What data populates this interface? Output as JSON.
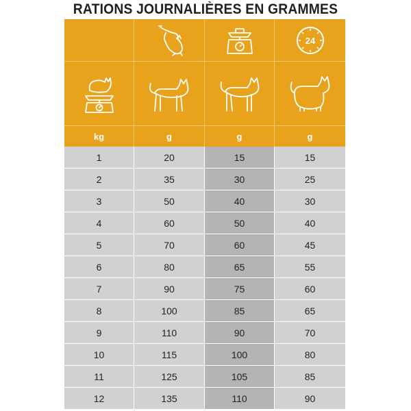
{
  "title": "RATIONS JOURNALIÈRES EN GRAMMES",
  "colors": {
    "header": "#e8a21c",
    "row": "#d1d1d1",
    "highlight_column": "#b5b3b5"
  },
  "header_icons": [
    "cat-weighing-scale-icon",
    "cat-walking-icon",
    "cat-standing-icon",
    "cat-sitting-icon",
    "cat-stretching-icon",
    "kitchen-scale-icon",
    "clock-24h-icon"
  ],
  "clock_label": "24",
  "columns": [
    "kg",
    "g",
    "g",
    "g"
  ],
  "rows": [
    [
      "1",
      "20",
      "15",
      "15"
    ],
    [
      "2",
      "35",
      "30",
      "25"
    ],
    [
      "3",
      "50",
      "40",
      "30"
    ],
    [
      "4",
      "60",
      "50",
      "40"
    ],
    [
      "5",
      "70",
      "60",
      "45"
    ],
    [
      "6",
      "80",
      "65",
      "55"
    ],
    [
      "7",
      "90",
      "75",
      "60"
    ],
    [
      "8",
      "100",
      "85",
      "65"
    ],
    [
      "9",
      "110",
      "90",
      "70"
    ],
    [
      "10",
      "115",
      "100",
      "80"
    ],
    [
      "11",
      "125",
      "105",
      "85"
    ],
    [
      "12",
      "135",
      "110",
      "90"
    ]
  ]
}
